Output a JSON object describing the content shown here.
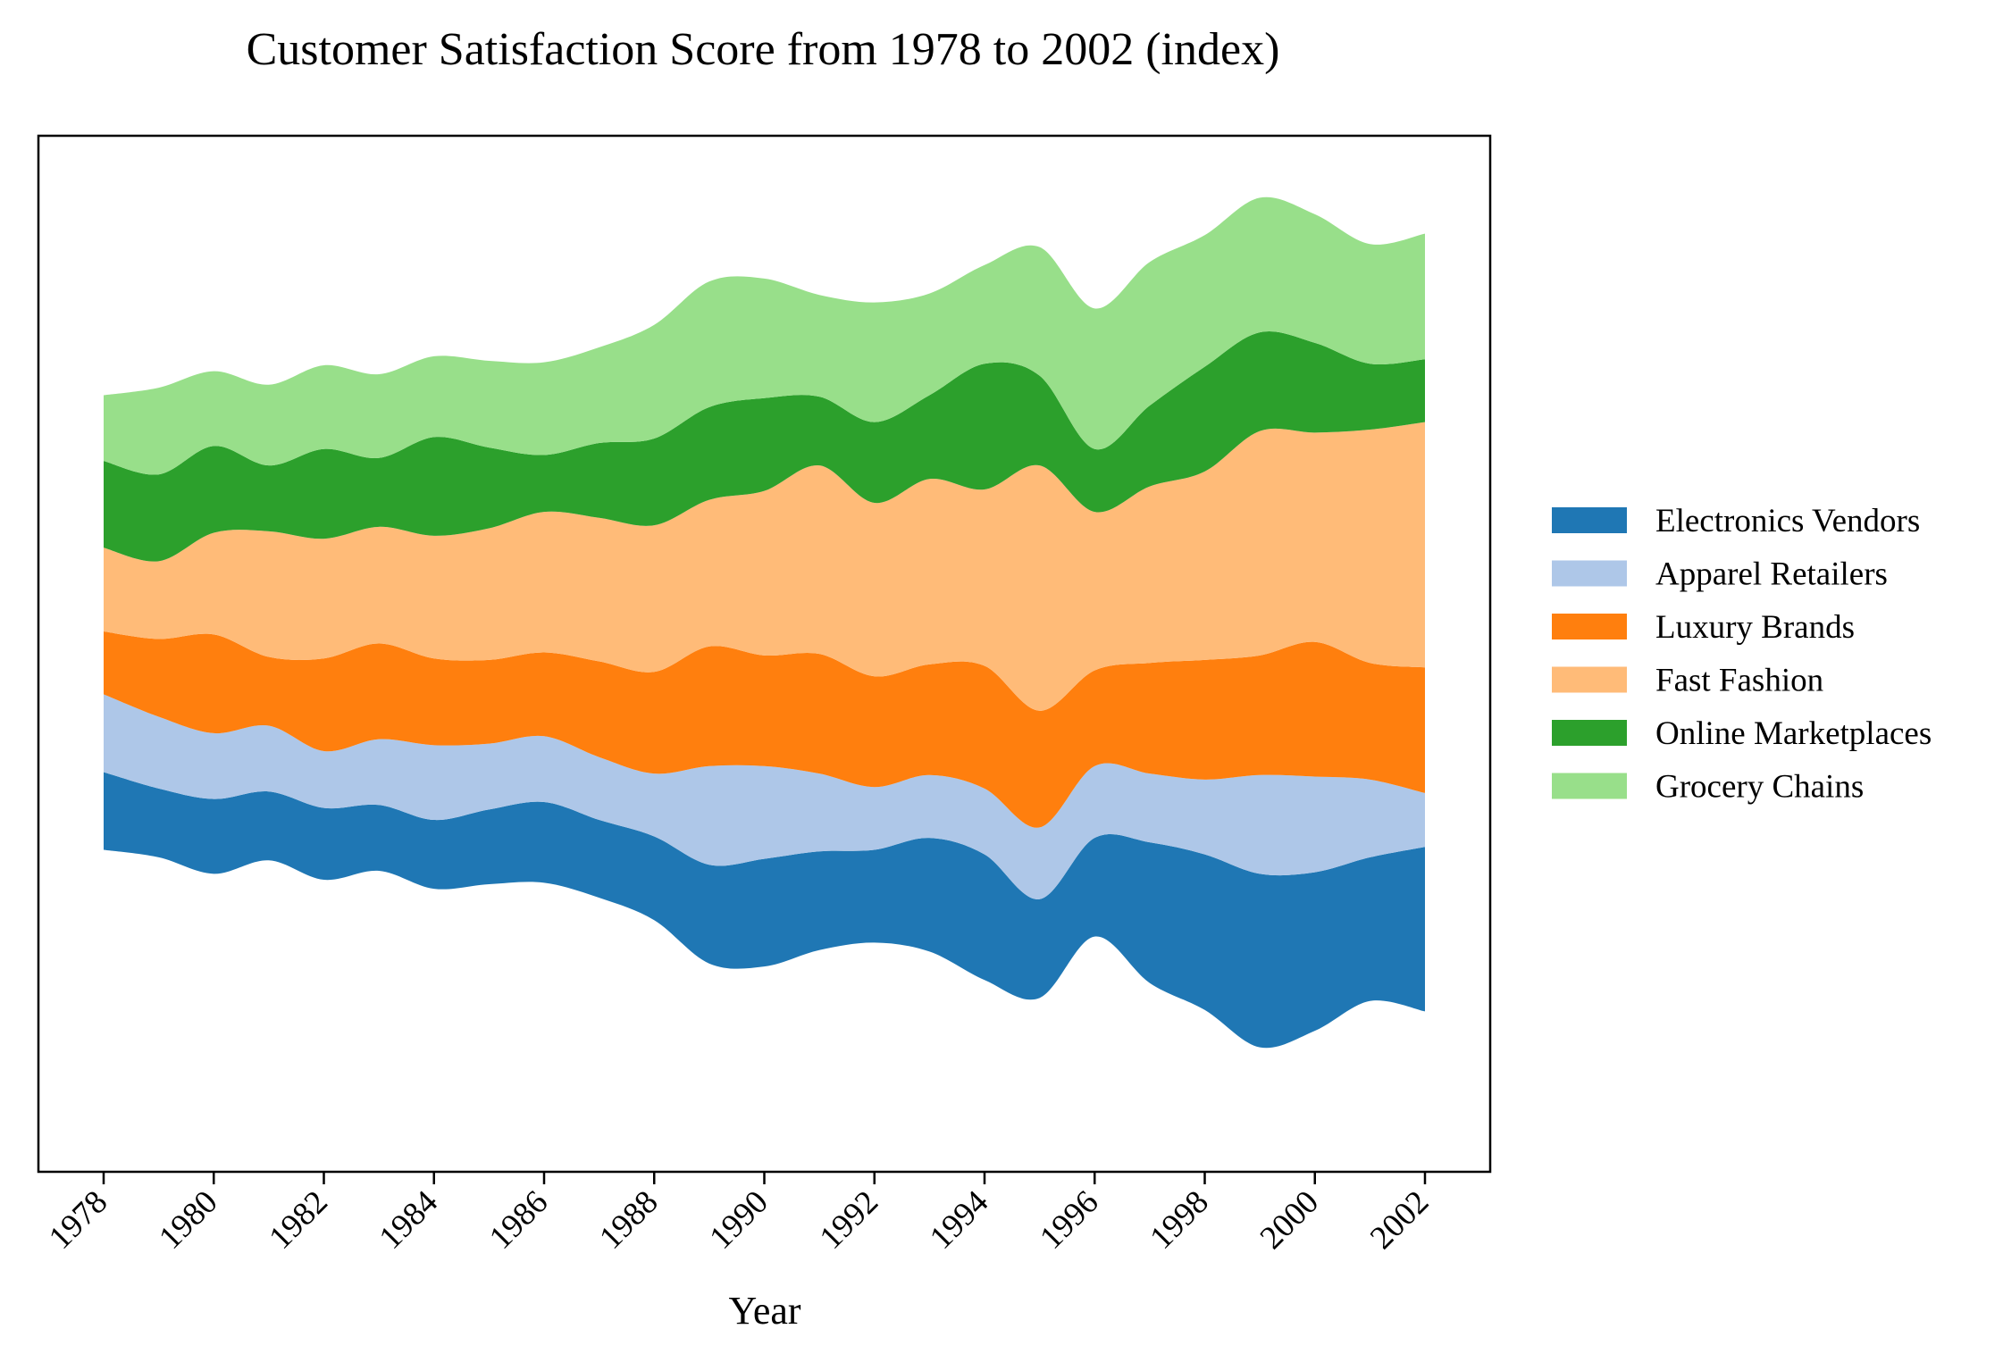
{
  "chart_data": {
    "type": "area",
    "subtype": "streamgraph",
    "title": "Customer Satisfaction Score from 1978 to 2002 (index)",
    "xlabel": "Year",
    "ylabel": "",
    "x": [
      1978,
      1979,
      1980,
      1981,
      1982,
      1983,
      1984,
      1985,
      1986,
      1987,
      1988,
      1989,
      1990,
      1991,
      1992,
      1993,
      1994,
      1995,
      1996,
      1997,
      1998,
      1999,
      2000,
      2001,
      2002
    ],
    "x_tick_labels": [
      "1978",
      "1980",
      "1982",
      "1984",
      "1986",
      "1988",
      "1990",
      "1992",
      "1994",
      "1996",
      "1998",
      "2000",
      "2002"
    ],
    "grid": false,
    "legend_position": "right",
    "series": [
      {
        "name": "Electronics Vendors",
        "color": "#1f77b4",
        "values": [
          26,
          23,
          25,
          23,
          24,
          22,
          23,
          25,
          27,
          26,
          28,
          33,
          36,
          33,
          31,
          38,
          42,
          33,
          33,
          47,
          52,
          58,
          53,
          48,
          55
        ]
      },
      {
        "name": "Apparel Retailers",
        "color": "#aec7e8",
        "values": [
          26,
          24,
          22,
          22,
          19,
          22,
          25,
          22,
          22,
          21,
          21,
          33,
          31,
          26,
          21,
          21,
          22,
          24,
          24,
          23,
          25,
          33,
          32,
          26,
          18
        ]
      },
      {
        "name": "Luxury Brands",
        "color": "#ff7f0e",
        "values": [
          21,
          26,
          33,
          23,
          31,
          32,
          29,
          28,
          28,
          32,
          34,
          40,
          37,
          40,
          37,
          37,
          41,
          39,
          32,
          37,
          40,
          40,
          45,
          39,
          42
        ]
      },
      {
        "name": "Fast Fashion",
        "color": "#ffbb78",
        "values": [
          28,
          26,
          34,
          42,
          40,
          39,
          41,
          44,
          47,
          48,
          49,
          49,
          55,
          63,
          58,
          62,
          59,
          82,
          53,
          59,
          63,
          75,
          70,
          78,
          82
        ]
      },
      {
        "name": "Online Marketplaces",
        "color": "#2ca02c",
        "values": [
          29,
          29,
          29,
          22,
          30,
          23,
          33,
          27,
          19,
          25,
          29,
          31,
          31,
          23,
          27,
          28,
          42,
          30,
          21,
          27,
          35,
          33,
          30,
          22,
          21
        ]
      },
      {
        "name": "Grocery Chains",
        "color": "#98df8a",
        "values": [
          22,
          29,
          25,
          27,
          28,
          28,
          27,
          29,
          31,
          32,
          38,
          42,
          40,
          34,
          40,
          34,
          33,
          43,
          47,
          48,
          44,
          45,
          43,
          40,
          42
        ]
      }
    ]
  }
}
